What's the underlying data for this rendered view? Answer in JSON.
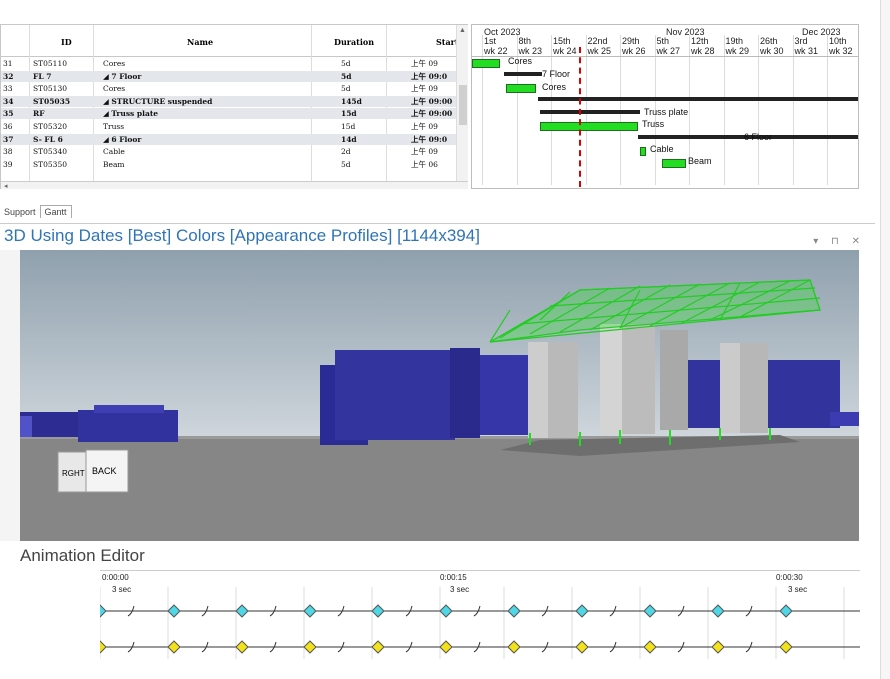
{
  "table": {
    "headers": {
      "id": "ID",
      "name": "Name",
      "duration": "Duration",
      "start": "Start"
    },
    "rows": [
      {
        "num": "31",
        "id": "ST05110",
        "name": "Cores",
        "duration": "5d",
        "start": "上午 09",
        "summary": false
      },
      {
        "num": "32",
        "id": "FL 7",
        "name": "◢ 7 Floor",
        "duration": "5d",
        "start": "上午 09:0",
        "summary": true
      },
      {
        "num": "33",
        "id": "ST05130",
        "name": "Cores",
        "duration": "5d",
        "start": "上午 09",
        "summary": false
      },
      {
        "num": "34",
        "id": "ST05035",
        "name": "◢ STRUCTURE suspended",
        "duration": "145d",
        "start": "上午 09:00",
        "summary": true
      },
      {
        "num": "35",
        "id": "RF",
        "name": "◢ Truss plate",
        "duration": "15d",
        "start": "上午 09:00",
        "summary": true
      },
      {
        "num": "36",
        "id": "ST05320",
        "name": "Truss",
        "duration": "15d",
        "start": "上午 09",
        "summary": false
      },
      {
        "num": "37",
        "id": "S- FL 6",
        "name": "◢ 6 Floor",
        "duration": "14d",
        "start": "上午 09:0",
        "summary": true
      },
      {
        "num": "38",
        "id": "ST05340",
        "name": "Cable",
        "duration": "2d",
        "start": "上午 09",
        "summary": false
      },
      {
        "num": "39",
        "id": "ST05350",
        "name": "Beam",
        "duration": "5d",
        "start": "上午 06",
        "summary": false
      }
    ]
  },
  "gantt": {
    "months": [
      "Oct 2023",
      "Nov 2023",
      "Dec 2023"
    ],
    "days": [
      "1st",
      "8th",
      "15th",
      "22nd",
      "29th",
      "5th",
      "12th",
      "19th",
      "26th",
      "3rd",
      "10th"
    ],
    "weeks": [
      "wk 22",
      "wk 23",
      "wk 24",
      "wk 25",
      "wk 26",
      "wk 27",
      "wk 28",
      "wk 29",
      "wk 30",
      "wk 31",
      "wk 32"
    ],
    "labels": [
      "Cores",
      "7 Floor",
      "Cores",
      "Truss plate",
      "Truss",
      "6 Floor",
      "Cable",
      "Beam"
    ]
  },
  "tabs": [
    "Support",
    "Gantt"
  ],
  "panel": {
    "title": "3D Using Dates [Best] Colors [Appearance Profiles]  [1144x394]",
    "controls": "▾ ⊓ ✕"
  },
  "viewcube": {
    "right_label": "RGHT",
    "back_label": "BACK"
  },
  "animation": {
    "title": "Animation Editor",
    "times": [
      "0:00:00",
      "0:00:15",
      "0:00:30"
    ],
    "span_label": "3 sec"
  },
  "colors": {
    "accent": "#2f74b8",
    "bar_green": "#22dd22",
    "today_line": "#dd0000",
    "key_cyan": "#4fd7e6",
    "key_yellow": "#f2e21b"
  }
}
